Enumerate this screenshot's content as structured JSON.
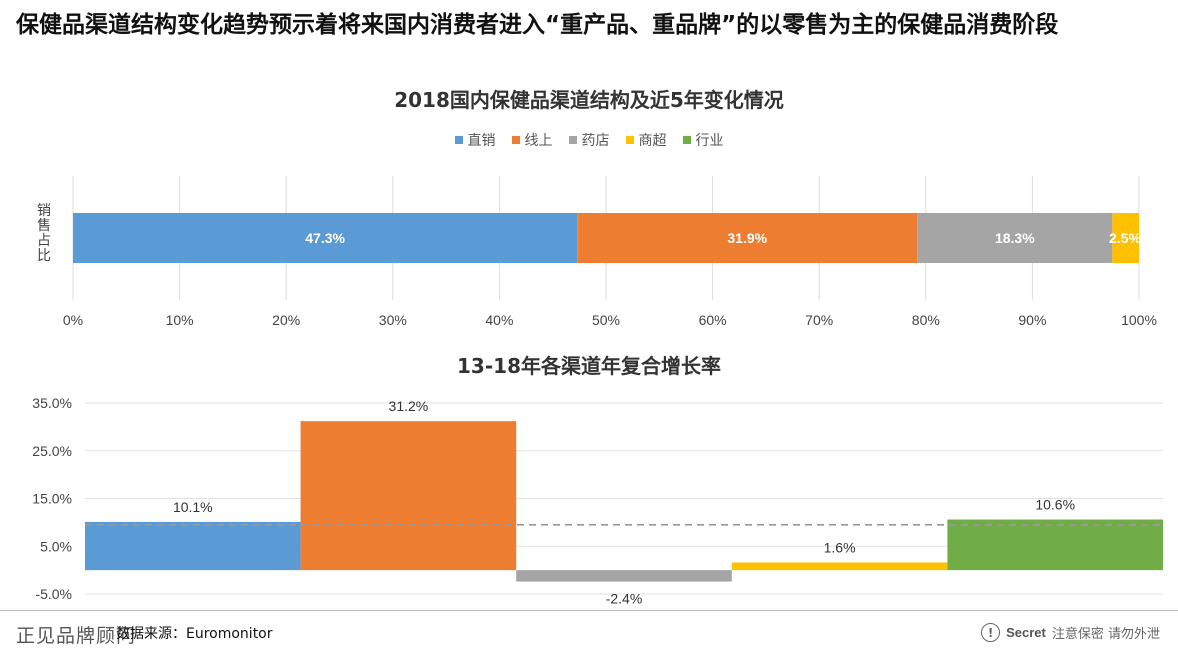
{
  "headline": "保健品渠道结构变化趋势预示着将来国内消费者进入“重产品、重品牌”的以零售为主的保健品消费阶段",
  "chart_data": [
    {
      "type": "bar",
      "orientation": "horizontal-stacked",
      "title": "2018国内保健品渠道结构及近5年变化情况",
      "ylabel": "销售占比",
      "legend_position": "top-center",
      "xlim": [
        0,
        100
      ],
      "x_ticks": [
        "0%",
        "10%",
        "20%",
        "30%",
        "40%",
        "50%",
        "60%",
        "70%",
        "80%",
        "90%",
        "100%"
      ],
      "series": [
        {
          "name": "直销",
          "value": 47.3,
          "label": "47.3%"
        },
        {
          "name": "线上",
          "value": 31.9,
          "label": "31.9%"
        },
        {
          "name": "药店",
          "value": 18.3,
          "label": "18.3%"
        },
        {
          "name": "商超",
          "value": 2.5,
          "label": "2.5%"
        },
        {
          "name": "行业",
          "value": 0,
          "label": ""
        }
      ],
      "grid": "vertical"
    },
    {
      "type": "bar",
      "title": "13-18年各渠道年复合增长率",
      "categories": [
        "直销",
        "线上",
        "药店",
        "商超",
        "行业"
      ],
      "values": [
        10.1,
        31.2,
        -2.4,
        1.6,
        10.6
      ],
      "labels": [
        "10.1%",
        "31.2%",
        "-2.4%",
        "1.6%",
        "10.6%"
      ],
      "ylim": [
        -5,
        35
      ],
      "y_ticks": [
        "35.0%",
        "25.0%",
        "15.0%",
        "5.0%",
        "-5.0%"
      ],
      "y_tick_values": [
        35,
        25,
        15,
        5,
        -5
      ],
      "reference_line": 9.5,
      "grid": "horizontal"
    }
  ],
  "colors": {
    "直销": "#5b9bd5",
    "线上": "#ed7d31",
    "药店": "#a5a5a5",
    "商超": "#ffc000",
    "行业": "#70ad47"
  },
  "footer": {
    "logo": "正见品牌顾问",
    "source": "数据来源：Euromonitor",
    "secret_word": "Secret",
    "secret_note": "注意保密 请勿外泄",
    "secret_icon": "exclamation-circle-icon"
  }
}
